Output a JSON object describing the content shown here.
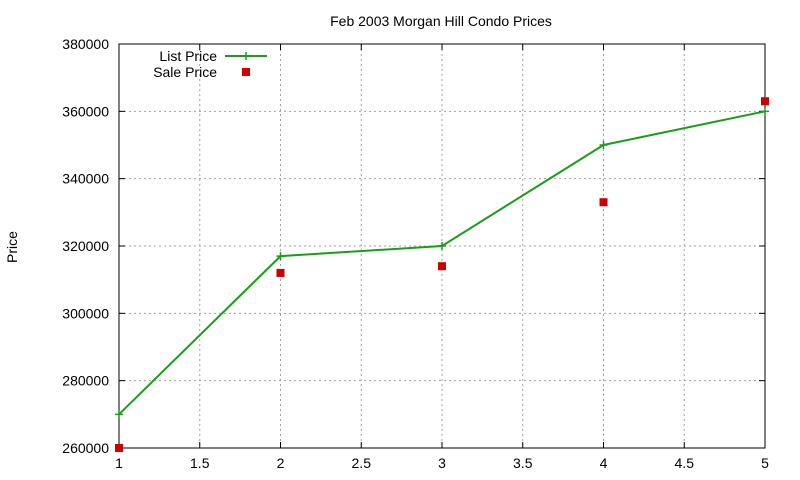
{
  "chart_data": {
    "type": "line",
    "title": "Feb 2003 Morgan Hill Condo Prices",
    "xlabel": "",
    "ylabel": "Price",
    "xlim": [
      1,
      5
    ],
    "ylim": [
      260000,
      380000
    ],
    "xticks": [
      "1",
      "1.5",
      "2",
      "2.5",
      "3",
      "3.5",
      "4",
      "4.5",
      "5"
    ],
    "yticks": [
      "260000",
      "280000",
      "300000",
      "320000",
      "340000",
      "360000",
      "380000"
    ],
    "grid": true,
    "legend_position": "top-left",
    "series": [
      {
        "name": "List Price",
        "style": "line-with-plus-markers",
        "color": "#1a9e1a",
        "x": [
          1,
          2,
          3,
          4,
          5
        ],
        "y": [
          270000,
          317000,
          320000,
          350000,
          360000
        ]
      },
      {
        "name": "Sale Price",
        "style": "square-markers",
        "color": "#cc0000",
        "x": [
          1,
          2,
          3,
          4,
          5
        ],
        "y": [
          260000,
          312000,
          314000,
          333000,
          363000
        ]
      }
    ]
  }
}
